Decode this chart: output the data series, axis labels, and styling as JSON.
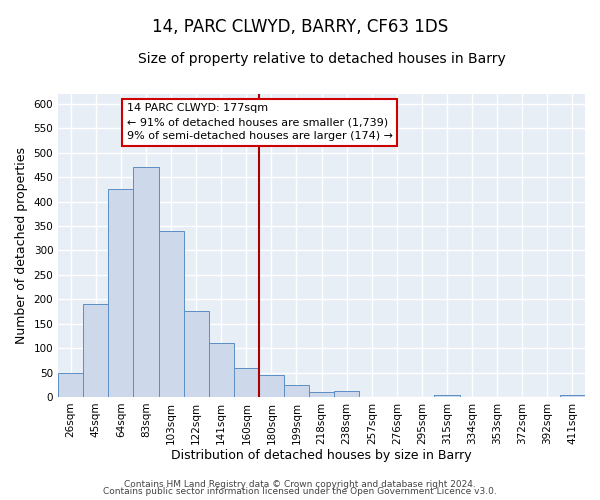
{
  "title": "14, PARC CLWYD, BARRY, CF63 1DS",
  "subtitle": "Size of property relative to detached houses in Barry",
  "xlabel": "Distribution of detached houses by size in Barry",
  "ylabel": "Number of detached properties",
  "bar_labels": [
    "26sqm",
    "45sqm",
    "64sqm",
    "83sqm",
    "103sqm",
    "122sqm",
    "141sqm",
    "160sqm",
    "180sqm",
    "199sqm",
    "218sqm",
    "238sqm",
    "257sqm",
    "276sqm",
    "295sqm",
    "315sqm",
    "334sqm",
    "353sqm",
    "372sqm",
    "392sqm",
    "411sqm"
  ],
  "bar_values": [
    50,
    190,
    425,
    470,
    340,
    175,
    110,
    60,
    45,
    25,
    10,
    12,
    0,
    0,
    0,
    5,
    0,
    0,
    0,
    0,
    5
  ],
  "bar_color": "#cdd9ea",
  "bar_edge_color": "#5b8ec4",
  "vline_color": "#aa0000",
  "annotation_box_text": "14 PARC CLWYD: 177sqm\n← 91% of detached houses are smaller (1,739)\n9% of semi-detached houses are larger (174) →",
  "annotation_box_edge_color": "#cc0000",
  "annotation_box_bg": "#ffffff",
  "ylim": [
    0,
    620
  ],
  "yticks": [
    0,
    50,
    100,
    150,
    200,
    250,
    300,
    350,
    400,
    450,
    500,
    550,
    600
  ],
  "footer_line1": "Contains HM Land Registry data © Crown copyright and database right 2024.",
  "footer_line2": "Contains public sector information licensed under the Open Government Licence v3.0.",
  "bg_color": "#ffffff",
  "plot_bg_color": "#e8eef6",
  "grid_color": "#ffffff",
  "title_fontsize": 12,
  "subtitle_fontsize": 10,
  "axis_label_fontsize": 9,
  "tick_fontsize": 7.5,
  "footer_fontsize": 6.5,
  "vline_bin_index": 8
}
